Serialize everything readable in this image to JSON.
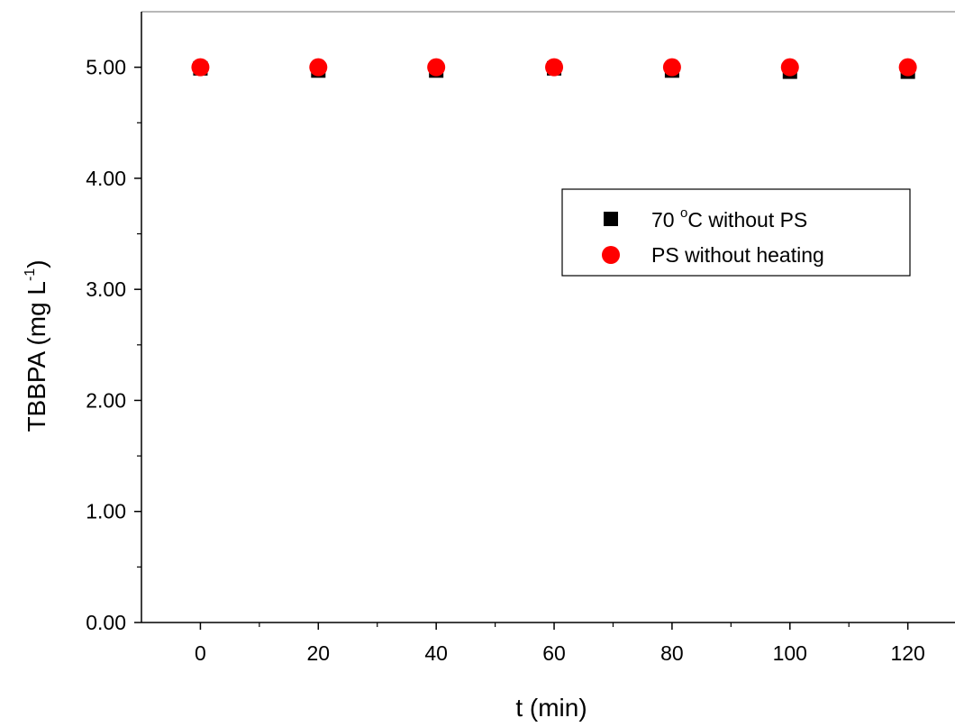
{
  "chart_data": {
    "type": "scatter",
    "x_ticks": [
      0,
      20,
      40,
      60,
      80,
      100,
      120
    ],
    "y_ticks": [
      0,
      1,
      2,
      3,
      4,
      5
    ],
    "x_tick_labels": [
      "0",
      "20",
      "40",
      "60",
      "80",
      "100",
      "120"
    ],
    "y_tick_labels": [
      "0.00",
      "1.00",
      "2.00",
      "3.00",
      "4.00",
      "5.00"
    ],
    "xlim": [
      -10,
      128
    ],
    "ylim": [
      0,
      5.5
    ],
    "xlabel": "t (min)",
    "ylabel": {
      "main": "TBBPA (mg L",
      "sup": "-1",
      "tail": ")"
    },
    "legend_position": "upper-right",
    "series": [
      {
        "label": {
          "pre": "70 ",
          "sup": "o",
          "post": "C without PS"
        },
        "marker": "square",
        "color": "#000000",
        "x": [
          0,
          20,
          40,
          60,
          80,
          100,
          120
        ],
        "y": [
          4.99,
          4.97,
          4.97,
          4.99,
          4.97,
          4.96,
          4.96
        ]
      },
      {
        "label": {
          "pre": "PS without heating",
          "sup": "",
          "post": ""
        },
        "marker": "circle",
        "color": "#ff0000",
        "x": [
          0,
          20,
          40,
          60,
          80,
          100,
          120
        ],
        "y": [
          5.0,
          5.0,
          5.0,
          5.0,
          5.0,
          5.0,
          5.0
        ]
      }
    ]
  }
}
